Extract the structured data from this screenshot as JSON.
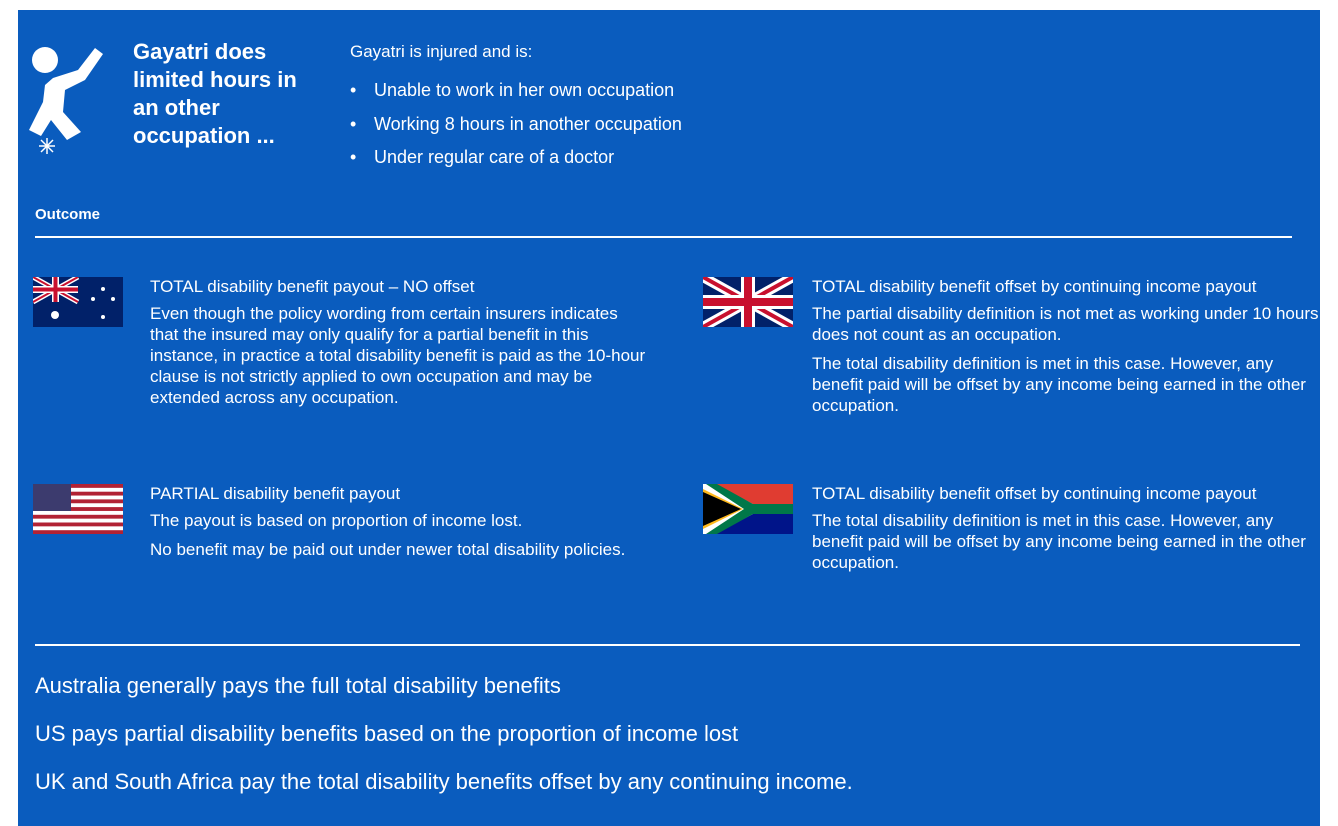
{
  "header": {
    "title": "Gayatri does limited hours in an other occupation ...",
    "intro": "Gayatri is injured and is:",
    "bullets": [
      "Unable to work in her own occupation",
      "Working 8 hours in another occupation",
      "Under regular care of a doctor"
    ]
  },
  "outcome_label": "Outcome",
  "countries": [
    {
      "heading": "TOTAL disability benefit payout – NO offset",
      "paragraphs": [
        "Even though the policy wording from certain insurers indicates that the insured may only qualify for a partial benefit in this instance, in practice a total disability benefit is paid as the 10-hour clause is not strictly applied to own occupation and may be extended across any occupation."
      ]
    },
    {
      "heading": "TOTAL disability benefit offset by continuing income payout",
      "paragraphs": [
        "The partial disability definition is not met as working under 10 hours does not count as an occupation.",
        "The total disability definition is met in this case. However, any benefit paid will be offset by any income being earned in the other occupation."
      ]
    },
    {
      "heading": "PARTIAL disability benefit payout",
      "paragraphs": [
        "The payout is based on proportion of income lost.",
        "No benefit may be paid out under newer total disability policies."
      ]
    },
    {
      "heading": "TOTAL disability benefit offset by continuing income payout",
      "paragraphs": [
        "The total disability definition is met in this case. However, any benefit paid will be offset by any income being earned in the other occupation."
      ]
    }
  ],
  "summary": [
    "Australia generally pays the full total disability benefits",
    "US pays partial disability benefits based on the proportion of income lost",
    "UK and South Africa pay the total disability benefits offset by any continuing income."
  ]
}
